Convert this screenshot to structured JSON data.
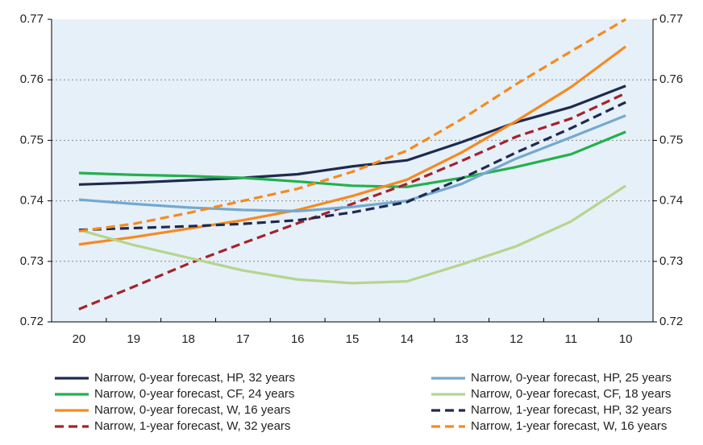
{
  "chart_data": {
    "type": "line",
    "categories": [
      "20",
      "19",
      "18",
      "17",
      "16",
      "15",
      "14",
      "13",
      "12",
      "11",
      "10"
    ],
    "ylim": [
      0.72,
      0.77
    ],
    "yticks": [
      0.72,
      0.73,
      0.74,
      0.75,
      0.76,
      0.77
    ],
    "y2lim": [
      0.72,
      0.77
    ],
    "y2ticks": [
      0.72,
      0.73,
      0.74,
      0.75,
      0.76,
      0.77
    ],
    "grid": true,
    "legend": "bottom",
    "series": [
      {
        "name": "Narrow, 0-year forecast, HP, 32 years",
        "color": "#1f2a4f",
        "dash": false,
        "values": [
          0.7427,
          0.743,
          0.7434,
          0.7438,
          0.7444,
          0.7457,
          0.7467,
          0.7497,
          0.753,
          0.7555,
          0.759
        ]
      },
      {
        "name": "Narrow, 0-year forecast, CF, 24 years",
        "color": "#22b14c",
        "dash": false,
        "values": [
          0.7446,
          0.7443,
          0.7441,
          0.7438,
          0.7432,
          0.7425,
          0.7423,
          0.7438,
          0.7456,
          0.7477,
          0.7514
        ]
      },
      {
        "name": "Narrow, 0-year forecast, W, 16 years",
        "color": "#f58a1f",
        "dash": false,
        "values": [
          0.7328,
          0.734,
          0.7354,
          0.7368,
          0.7385,
          0.7408,
          0.7435,
          0.748,
          0.7532,
          0.7588,
          0.7655
        ]
      },
      {
        "name": "Narrow, 1-year forecast, W, 32 years",
        "color": "#a3232b",
        "dash": true,
        "values": [
          0.7221,
          0.7258,
          0.7296,
          0.733,
          0.7363,
          0.7395,
          0.7428,
          0.7466,
          0.7506,
          0.7536,
          0.7578
        ]
      },
      {
        "name": "Narrow, 0-year forecast, HP, 25 years",
        "color": "#74a9cf",
        "dash": false,
        "values": [
          0.7402,
          0.7395,
          0.7389,
          0.7385,
          0.7383,
          0.739,
          0.74,
          0.7428,
          0.747,
          0.7505,
          0.7541
        ]
      },
      {
        "name": "Narrow, 0-year forecast, CF, 18 years",
        "color": "#b5d58c",
        "dash": false,
        "values": [
          0.7352,
          0.7327,
          0.7306,
          0.7285,
          0.727,
          0.7264,
          0.7267,
          0.7295,
          0.7325,
          0.7366,
          0.7425
        ]
      },
      {
        "name": "Narrow, 1-year forecast, HP, 32 years",
        "color": "#1f2a4f",
        "dash": true,
        "values": [
          0.7352,
          0.7355,
          0.7358,
          0.7362,
          0.7368,
          0.7381,
          0.7398,
          0.7437,
          0.748,
          0.752,
          0.7563
        ]
      },
      {
        "name": "Narrow, 1-year forecast, W, 16 years",
        "color": "#f58a1f",
        "dash": true,
        "values": [
          0.735,
          0.7362,
          0.738,
          0.74,
          0.742,
          0.7448,
          0.7483,
          0.7535,
          0.7593,
          0.7647,
          0.77
        ]
      }
    ]
  }
}
